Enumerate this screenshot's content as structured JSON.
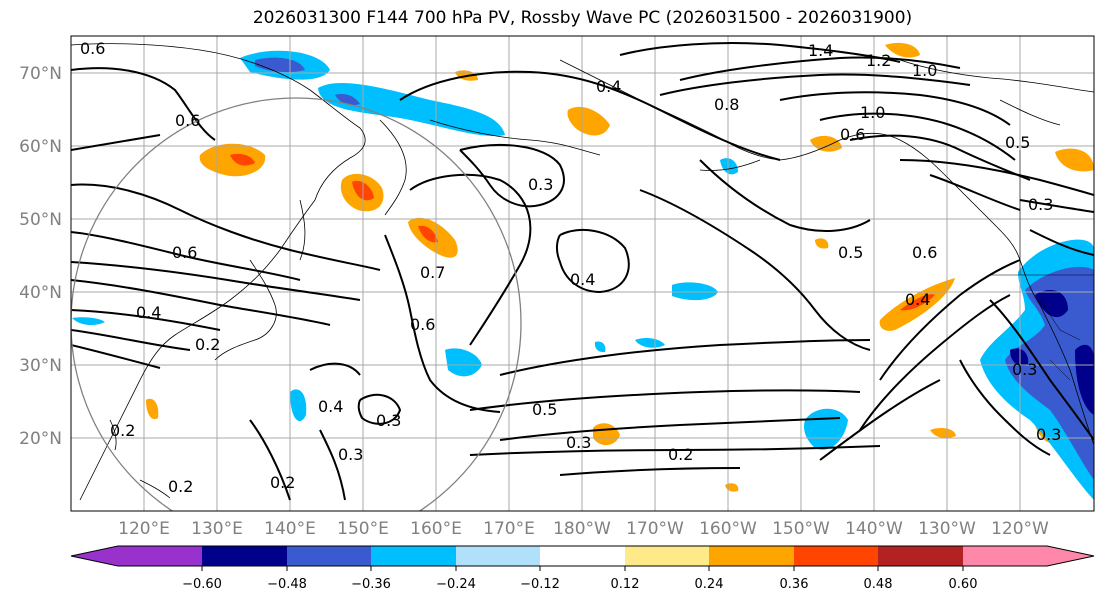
{
  "title": "2026031300 F144 700 hPa PV, Rossby Wave PC (2026031500 - 2026031900)",
  "lat_labels": [
    "70°N",
    "60°N",
    "50°N",
    "40°N",
    "30°N",
    "20°N"
  ],
  "lon_labels": [
    "120°E",
    "130°E",
    "140°E",
    "150°E",
    "160°E",
    "170°E",
    "180°W",
    "170°W",
    "160°W",
    "150°W",
    "140°W",
    "130°W",
    "120°W"
  ],
  "colorbar": {
    "ticks": [
      "−0.60",
      "−0.48",
      "−0.36",
      "−0.24",
      "−0.12",
      "0.12",
      "0.24",
      "0.36",
      "0.48",
      "0.60"
    ],
    "colors": [
      "#9932cc",
      "#00008b",
      "#3a5bcf",
      "#00bfff",
      "#b0e0fa",
      "#ffffff",
      "#ffea8a",
      "#ffa500",
      "#ff4500",
      "#b22222",
      "#ff88aa"
    ]
  },
  "contour_labels": [
    "0.6",
    "1.4",
    "1.2",
    "1.0",
    "0.8",
    "0.4",
    "1.0",
    "0.6",
    "0.5",
    "0.3",
    "0.6",
    "0.6",
    "0.7",
    "0.6",
    "0.3",
    "0.4",
    "0.5",
    "0.6",
    "0.4",
    "0.4",
    "0.2",
    "0.4",
    "0.3",
    "0.3",
    "0.2",
    "0.2",
    "0.5",
    "0.3",
    "0.2",
    "0.3",
    "0.3",
    "0.2"
  ]
}
